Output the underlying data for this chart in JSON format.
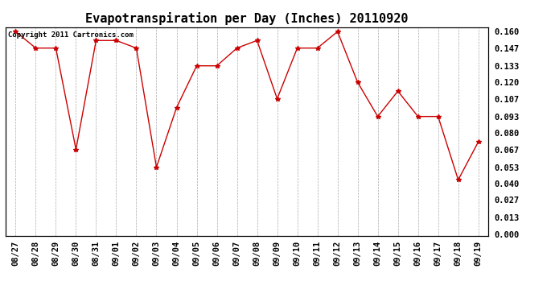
{
  "title": "Evapotranspiration per Day (Inches) 20110920",
  "copyright_text": "Copyright 2011 Cartronics.com",
  "x_labels": [
    "08/27",
    "08/28",
    "08/29",
    "08/30",
    "08/31",
    "09/01",
    "09/02",
    "09/03",
    "09/04",
    "09/05",
    "09/06",
    "09/07",
    "09/08",
    "09/09",
    "09/10",
    "09/11",
    "09/12",
    "09/13",
    "09/14",
    "09/15",
    "09/16",
    "09/17",
    "09/18",
    "09/19"
  ],
  "y_values": [
    0.16,
    0.147,
    0.147,
    0.067,
    0.153,
    0.153,
    0.147,
    0.053,
    0.1,
    0.133,
    0.133,
    0.147,
    0.153,
    0.107,
    0.147,
    0.147,
    0.16,
    0.12,
    0.093,
    0.113,
    0.093,
    0.093,
    0.043,
    0.073
  ],
  "y_ticks": [
    0.0,
    0.013,
    0.027,
    0.04,
    0.053,
    0.067,
    0.08,
    0.093,
    0.107,
    0.12,
    0.133,
    0.147,
    0.16
  ],
  "line_color": "#cc0000",
  "marker": "*",
  "marker_color": "#cc0000",
  "bg_color": "#ffffff",
  "grid_color": "#aaaaaa",
  "title_fontsize": 11,
  "tick_fontsize": 7.5,
  "copyright_fontsize": 6.5
}
